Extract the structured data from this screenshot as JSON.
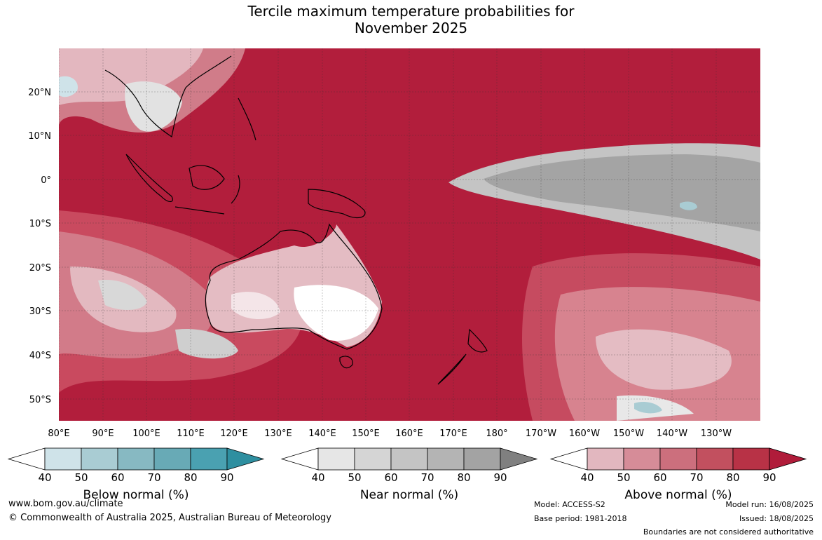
{
  "title": {
    "line1": "Tercile maximum temperature probabilities for",
    "line2": "November 2025"
  },
  "axes": {
    "lat_labels": [
      "20°N",
      "10°N",
      "0°",
      "10°S",
      "20°S",
      "30°S",
      "40°S",
      "50°S"
    ],
    "lon_labels": [
      "80°E",
      "90°E",
      "100°E",
      "110°E",
      "120°E",
      "130°E",
      "140°E",
      "150°E",
      "160°E",
      "170°E",
      "180°",
      "170°W",
      "160°W",
      "150°W",
      "140°W",
      "130°W"
    ]
  },
  "colorbars": [
    {
      "title": "Below normal (%)",
      "ticks": [
        "40",
        "50",
        "60",
        "70",
        "80",
        "90"
      ],
      "colors": [
        "#ffffff",
        "#cfe3e9",
        "#a9ccd3",
        "#87b9c2",
        "#68aab6",
        "#4aa1b1",
        "#2e8fa0"
      ]
    },
    {
      "title": "Near normal (%)",
      "ticks": [
        "40",
        "50",
        "60",
        "70",
        "80",
        "90"
      ],
      "colors": [
        "#ffffff",
        "#e6e6e6",
        "#d5d5d5",
        "#c4c4c4",
        "#b4b4b4",
        "#a3a3a3",
        "#808080"
      ]
    },
    {
      "title": "Above normal (%)",
      "ticks": [
        "40",
        "50",
        "60",
        "70",
        "80",
        "90"
      ],
      "colors": [
        "#ffffff",
        "#e2b7bf",
        "#d68c98",
        "#cc6f7d",
        "#c2505f",
        "#b83246",
        "#b01c3a"
      ]
    }
  ],
  "footer": {
    "website": "www.bom.gov.au/climate",
    "copyright": "© Commonwealth of Australia 2025, Australian Bureau of Meteorology",
    "model": "Model: ACCESS-S2",
    "base_period": "Base period: 1981-2018",
    "model_run": "Model run: 16/08/2025",
    "issued": "Issued: 18/08/2025",
    "disclaimer": "Boundaries are not considered authoritative"
  }
}
